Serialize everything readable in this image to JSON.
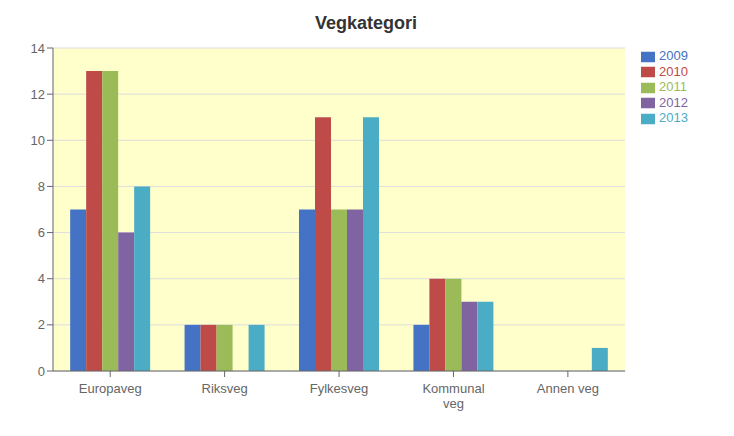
{
  "chart_data": {
    "type": "bar",
    "title": "Vegkategori",
    "categories": [
      "Europaveg",
      "Riksveg",
      "Fylkesveg",
      "Kommunal\nveg",
      "Annen veg"
    ],
    "series": [
      {
        "name": "2009",
        "color": "#4472C4",
        "values": [
          7,
          2,
          7,
          2,
          0
        ]
      },
      {
        "name": "2010",
        "color": "#BE4B48",
        "values": [
          13,
          2,
          11,
          4,
          0
        ]
      },
      {
        "name": "2011",
        "color": "#9BBB59",
        "values": [
          13,
          2,
          7,
          4,
          0
        ]
      },
      {
        "name": "2012",
        "color": "#8064A2",
        "values": [
          6,
          0,
          7,
          3,
          0
        ]
      },
      {
        "name": "2013",
        "color": "#4BACC6",
        "values": [
          8,
          2,
          11,
          3,
          1
        ]
      }
    ],
    "ylim": [
      0,
      14
    ],
    "yticks": [
      0,
      2,
      4,
      6,
      8,
      10,
      12,
      14
    ],
    "grid": true,
    "legend": "right"
  }
}
